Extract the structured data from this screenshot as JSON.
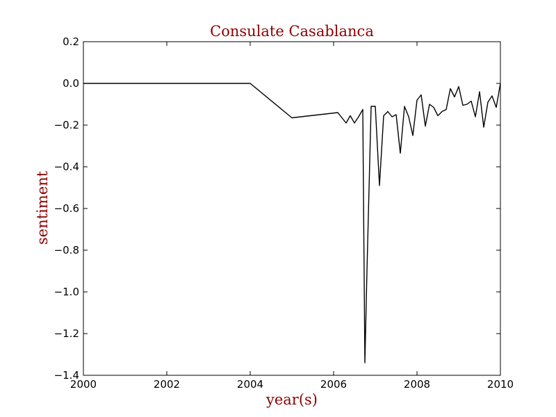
{
  "colors": {
    "label": "#8b0000",
    "line": "#000000",
    "axes": "#000000",
    "background": "#ffffff"
  },
  "chart_data": {
    "type": "line",
    "title": "Consulate Casablanca",
    "xlabel": "year(s)",
    "ylabel": "sentiment",
    "xlim": [
      2000,
      2010
    ],
    "ylim": [
      -1.4,
      0.2
    ],
    "x_ticks": [
      "2000",
      "2002",
      "2004",
      "2006",
      "2008",
      "2010"
    ],
    "y_ticks": [
      "0.2",
      "0.0",
      "−0.2",
      "−0.4",
      "−0.6",
      "−0.8",
      "−1.0",
      "−1.2",
      "−1.4"
    ],
    "grid": false,
    "legend": "none",
    "series": [
      {
        "x": [
          2000.0,
          2004.0,
          2005.0,
          2006.1,
          2006.2,
          2006.3,
          2006.4,
          2006.5,
          2006.6,
          2006.7,
          2006.75,
          2006.8,
          2006.9,
          2007.0,
          2007.1,
          2007.2,
          2007.3,
          2007.4,
          2007.5,
          2007.6,
          2007.7,
          2007.8,
          2007.9,
          2008.0,
          2008.1,
          2008.2,
          2008.3,
          2008.4,
          2008.5,
          2008.6,
          2008.7,
          2008.8,
          2008.9,
          2009.0,
          2009.1,
          2009.2,
          2009.3,
          2009.4,
          2009.5,
          2009.6,
          2009.7,
          2009.8,
          2009.9,
          2010.0
        ],
        "y": [
          0.0,
          0.0,
          -0.165,
          -0.14,
          -0.165,
          -0.19,
          -0.155,
          -0.19,
          -0.16,
          -0.125,
          -1.34,
          -0.9,
          -0.11,
          -0.11,
          -0.49,
          -0.155,
          -0.135,
          -0.16,
          -0.15,
          -0.335,
          -0.11,
          -0.16,
          -0.25,
          -0.08,
          -0.055,
          -0.205,
          -0.1,
          -0.115,
          -0.155,
          -0.135,
          -0.125,
          -0.025,
          -0.065,
          -0.015,
          -0.105,
          -0.1,
          -0.085,
          -0.16,
          -0.04,
          -0.21,
          -0.09,
          -0.06,
          -0.115,
          0.0
        ]
      }
    ]
  }
}
